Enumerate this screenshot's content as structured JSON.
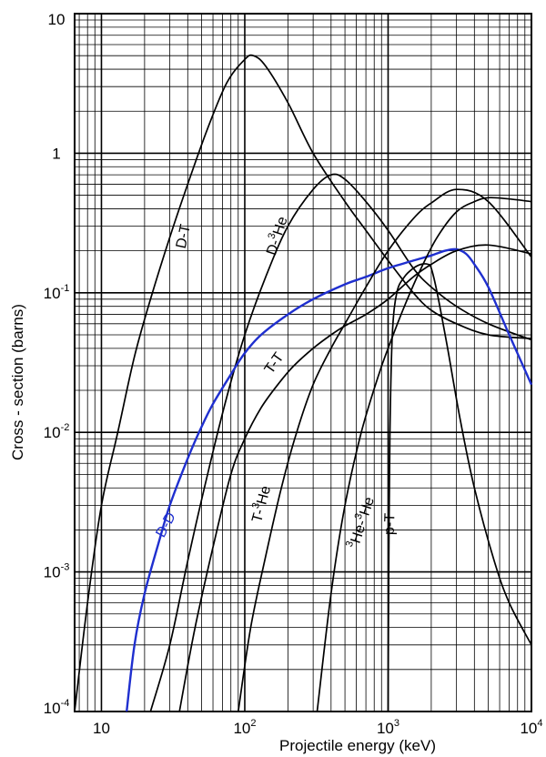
{
  "chart_data": {
    "type": "line",
    "scale": "log-log",
    "xlabel": "Projectile energy (keV)",
    "ylabel": "Cross - section (barns)",
    "xlim": [
      6.5,
      10000
    ],
    "ylim": [
      0.0001,
      10
    ],
    "x_ticks": [
      {
        "value": 10,
        "base": "10",
        "exp": ""
      },
      {
        "value": 100,
        "base": "10",
        "exp": "2"
      },
      {
        "value": 1000,
        "base": "10",
        "exp": "3"
      },
      {
        "value": 10000,
        "base": "10",
        "exp": "4"
      }
    ],
    "y_ticks": [
      {
        "value": 10,
        "base": "10",
        "exp": ""
      },
      {
        "value": 1,
        "base": "1",
        "exp": ""
      },
      {
        "value": 0.1,
        "base": "10",
        "exp": "-1"
      },
      {
        "value": 0.01,
        "base": "10",
        "exp": "-2"
      },
      {
        "value": 0.001,
        "base": "10",
        "exp": "-3"
      },
      {
        "value": 0.0001,
        "base": "10",
        "exp": "-4"
      }
    ],
    "grid": true,
    "series": [
      {
        "name": "D-T",
        "label_main": "D-T",
        "label_sup": "",
        "label_suffix": "",
        "color": "#000000",
        "x": [
          6.5,
          8,
          10,
          13,
          17,
          22,
          30,
          40,
          55,
          75,
          100,
          115,
          140,
          200,
          300,
          500,
          700,
          1000,
          1500,
          2000,
          3000,
          5000,
          10000
        ],
        "y": [
          0.0001,
          0.0006,
          0.003,
          0.01,
          0.035,
          0.09,
          0.25,
          0.6,
          1.5,
          3.2,
          4.7,
          5.0,
          4.2,
          2.3,
          1.0,
          0.45,
          0.28,
          0.17,
          0.1,
          0.075,
          0.06,
          0.05,
          0.047
        ],
        "label_x": 40,
        "label_y": 0.25,
        "label_rotation": -78
      },
      {
        "name": "D-3He",
        "label_main": "D-",
        "label_sup": "3",
        "label_suffix": "He",
        "color": "#000000",
        "x": [
          22,
          30,
          40,
          55,
          75,
          100,
          140,
          200,
          300,
          400,
          500,
          700,
          1000,
          1500,
          2000,
          3000,
          5000,
          10000
        ],
        "y": [
          0.0001,
          0.0003,
          0.0012,
          0.005,
          0.018,
          0.05,
          0.13,
          0.3,
          0.55,
          0.7,
          0.65,
          0.45,
          0.28,
          0.15,
          0.11,
          0.08,
          0.06,
          0.046
        ],
        "label_x": 180,
        "label_y": 0.25,
        "label_rotation": -72
      },
      {
        "name": "D-D",
        "label_main": "D-D",
        "label_sup": "",
        "label_suffix": "",
        "color": "#1f2fcf",
        "x": [
          15,
          17,
          20,
          25,
          30,
          40,
          50,
          60,
          80,
          100,
          130,
          200,
          300,
          500,
          700,
          1000,
          1500,
          2000,
          2500,
          3000,
          3500,
          4000,
          5000,
          7000,
          10000
        ],
        "y": [
          0.0001,
          0.0003,
          0.0007,
          0.0016,
          0.003,
          0.0065,
          0.011,
          0.016,
          0.026,
          0.037,
          0.05,
          0.07,
          0.09,
          0.115,
          0.13,
          0.15,
          0.17,
          0.185,
          0.2,
          0.205,
          0.19,
          0.16,
          0.11,
          0.05,
          0.022
        ],
        "label_x": 30,
        "label_y": 0.0021,
        "label_rotation": -62
      },
      {
        "name": "T-T",
        "label_main": "T-T",
        "label_sup": "",
        "label_suffix": "",
        "color": "#000000",
        "x": [
          35,
          45,
          60,
          80,
          100,
          130,
          170,
          220,
          300,
          400,
          500,
          700,
          1000,
          1500,
          2000,
          3000,
          5000,
          10000
        ],
        "y": [
          0.0001,
          0.0004,
          0.0015,
          0.005,
          0.009,
          0.015,
          0.022,
          0.03,
          0.04,
          0.05,
          0.058,
          0.07,
          0.09,
          0.13,
          0.16,
          0.2,
          0.22,
          0.19
        ],
        "label_x": 170,
        "label_y": 0.03,
        "label_rotation": -55
      },
      {
        "name": "T-3He",
        "label_main": "T-",
        "label_sup": "3",
        "label_suffix": "He",
        "color": "#000000",
        "x": [
          90,
          110,
          140,
          180,
          230,
          300,
          400,
          500,
          700,
          1000,
          1500,
          2000,
          3000,
          5000,
          10000
        ],
        "y": [
          0.0001,
          0.0004,
          0.0013,
          0.004,
          0.01,
          0.022,
          0.04,
          0.06,
          0.11,
          0.2,
          0.34,
          0.44,
          0.55,
          0.45,
          0.18
        ],
        "label_x": 140,
        "label_y": 0.003,
        "label_rotation": -75
      },
      {
        "name": "3He-3He",
        "label_main": "",
        "label_sup": "3",
        "label_suffix": "He-",
        "label_sup2": "3",
        "label_suffix2": "He",
        "color": "#000000",
        "x": [
          320,
          400,
          500,
          650,
          850,
          1000,
          1300,
          1700,
          2200,
          3000,
          4000,
          5000,
          7000,
          10000
        ],
        "y": [
          0.0001,
          0.0007,
          0.003,
          0.01,
          0.025,
          0.04,
          0.08,
          0.15,
          0.25,
          0.38,
          0.45,
          0.48,
          0.47,
          0.45
        ],
        "label_x": 700,
        "label_y": 0.0022,
        "label_rotation": -72
      },
      {
        "name": "p-T",
        "label_main": "p-T",
        "label_sup": "",
        "label_suffix": "",
        "color": "#000000",
        "x": [
          1000,
          1010,
          1030,
          1070,
          1150,
          1300,
          1500,
          1700,
          1900,
          2000,
          2200,
          2600,
          3200,
          4000,
          5500,
          7000,
          10000
        ],
        "y": [
          0.0001,
          0.001,
          0.01,
          0.05,
          0.1,
          0.13,
          0.15,
          0.16,
          0.16,
          0.15,
          0.1,
          0.04,
          0.012,
          0.004,
          0.0012,
          0.0006,
          0.0003
        ],
        "label_x": 1100,
        "label_y": 0.0022,
        "label_rotation": -88
      }
    ]
  }
}
